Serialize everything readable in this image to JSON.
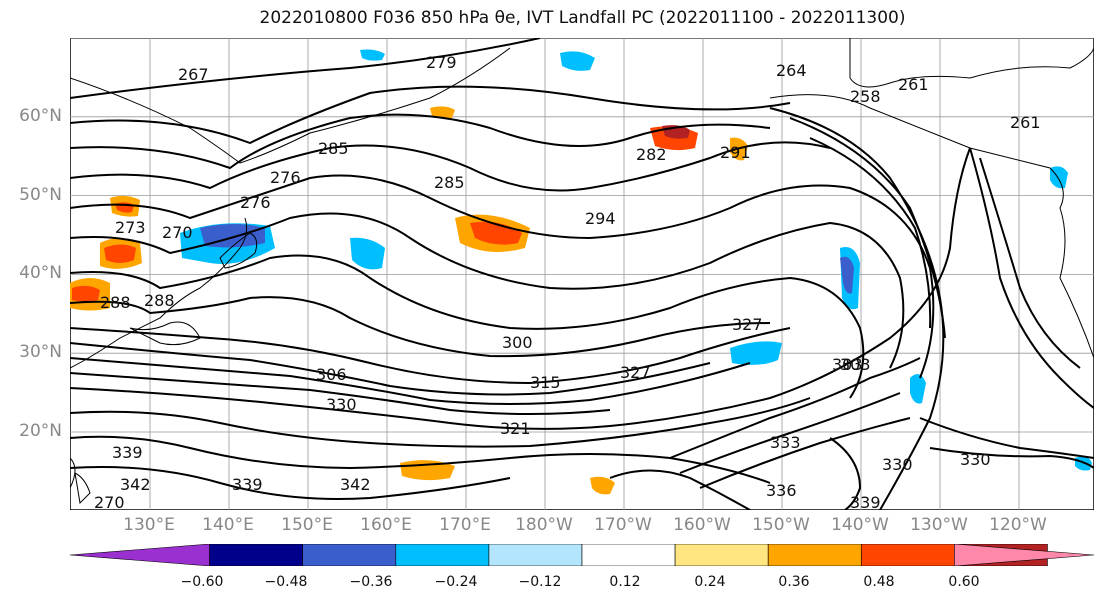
{
  "title": "2022010800 F036 850 hPa θe, IVT Landfall PC (2022011100 - 2022011300)",
  "lat_labels": [
    "60°N",
    "50°N",
    "40°N",
    "30°N",
    "20°N"
  ],
  "lon_labels": [
    "130°E",
    "140°E",
    "150°E",
    "160°E",
    "170°E",
    "180°W",
    "170°W",
    "160°W",
    "150°W",
    "140°W",
    "130°W",
    "120°W"
  ],
  "contour_labels": [
    "267",
    "279",
    "264",
    "258",
    "261",
    "261",
    "276",
    "270",
    "285",
    "282",
    "285",
    "294",
    "288",
    "270",
    "276",
    "273",
    "291",
    "288",
    "303",
    "300",
    "306",
    "315",
    "327",
    "303",
    "330",
    "321",
    "333",
    "339",
    "330",
    "339",
    "342",
    "336",
    "342",
    "339",
    "330",
    "327"
  ],
  "colorbar": {
    "colors": [
      "#9b30d0",
      "#00008b",
      "#3a5fcd",
      "#00bfff",
      "#b3e5fc",
      "#ffffff",
      "#ffe680",
      "#ffa500",
      "#ff4500",
      "#b22222",
      "#ff88aa"
    ],
    "ticks": [
      "−0.60",
      "−0.48",
      "−0.36",
      "−0.24",
      "−0.12",
      "0.12",
      "0.24",
      "0.36",
      "0.48",
      "0.60"
    ]
  }
}
